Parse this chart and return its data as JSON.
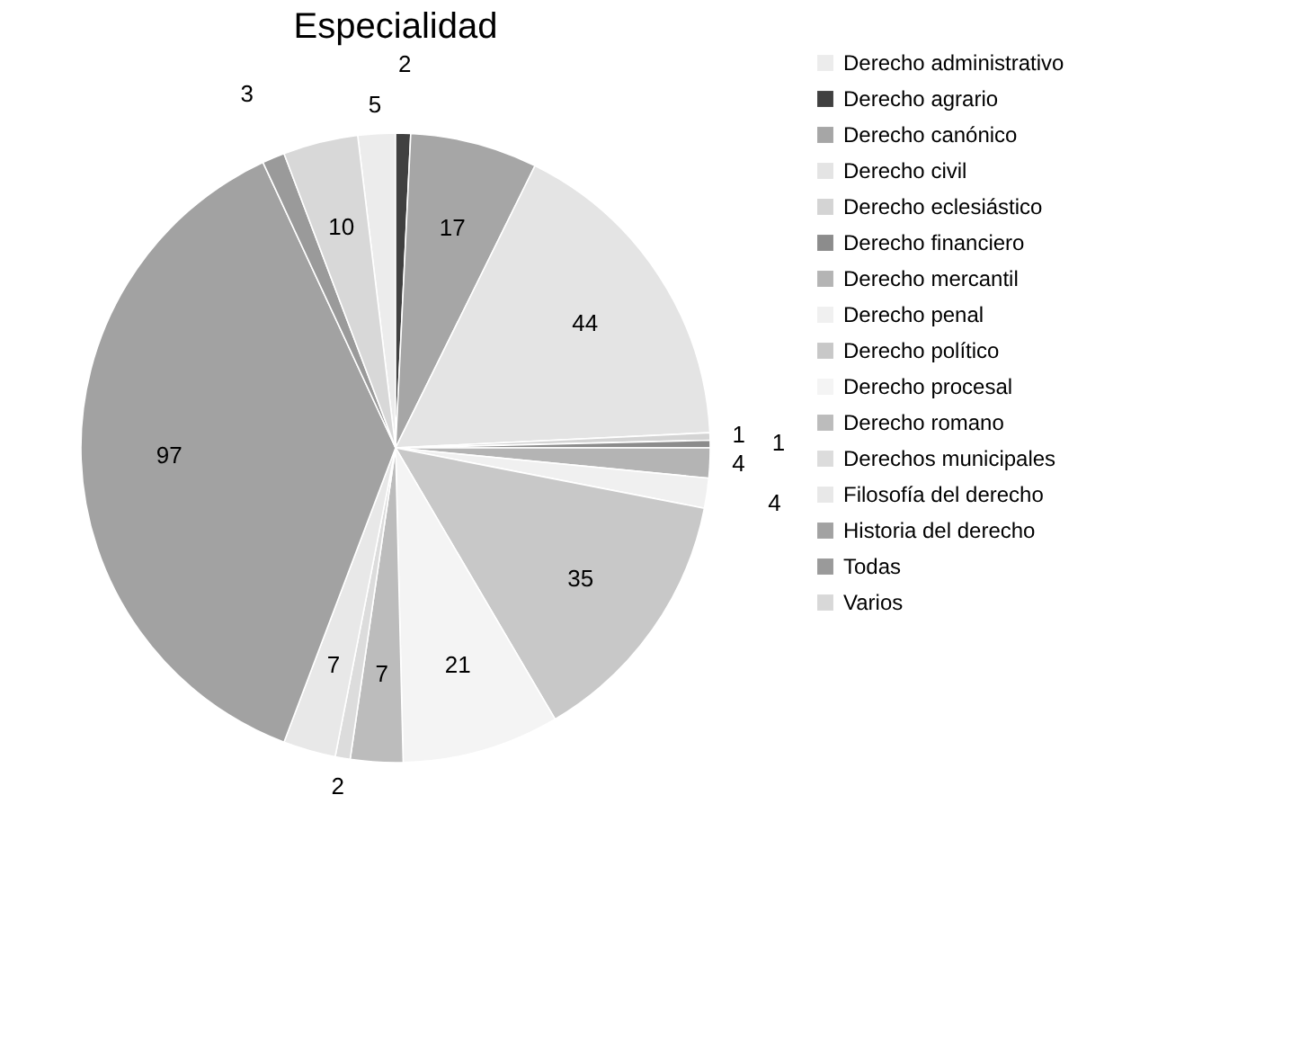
{
  "chart_data": {
    "type": "pie",
    "title": "Especialidad",
    "categories": [
      "Derecho administrativo",
      "Derecho agrario",
      "Derecho canónico",
      "Derecho civil",
      "Derecho eclesiástico",
      "Derecho financiero",
      "Derecho mercantil",
      "Derecho penal",
      "Derecho político",
      "Derecho procesal",
      "Derecho romano",
      "Derechos municipales",
      "Filosofía del derecho",
      "Historia del derecho",
      "Todas",
      "Varios"
    ],
    "values": [
      5,
      2,
      17,
      44,
      1,
      1,
      4,
      4,
      35,
      21,
      7,
      2,
      7,
      97,
      3,
      10
    ],
    "colors": [
      "#ececec",
      "#404040",
      "#a6a6a6",
      "#e4e4e4",
      "#d4d4d4",
      "#8c8c8c",
      "#b4b4b4",
      "#f0f0f0",
      "#c8c8c8",
      "#f4f4f4",
      "#bcbcbc",
      "#dcdcdc",
      "#e8e8e8",
      "#a2a2a2",
      "#9a9a9a",
      "#d8d8d8"
    ],
    "data_labels": true,
    "legend": "right"
  }
}
